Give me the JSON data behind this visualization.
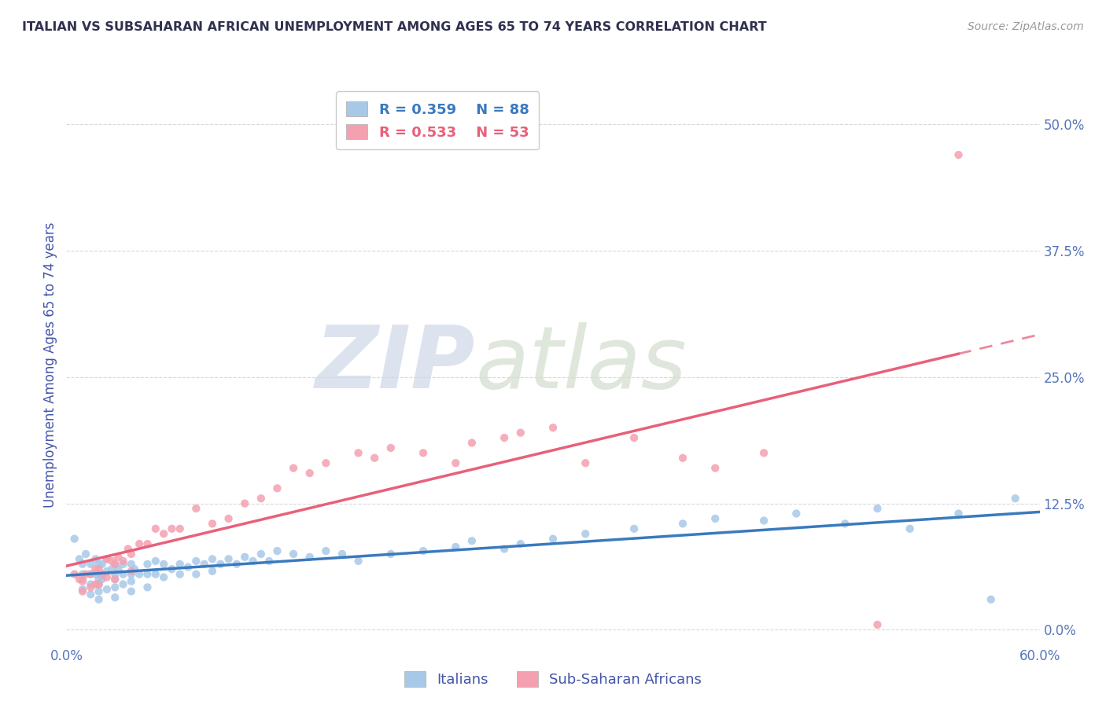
{
  "title": "ITALIAN VS SUBSAHARAN AFRICAN UNEMPLOYMENT AMONG AGES 65 TO 74 YEARS CORRELATION CHART",
  "source": "Source: ZipAtlas.com",
  "ylabel": "Unemployment Among Ages 65 to 74 years",
  "xlim": [
    0.0,
    0.6
  ],
  "ylim": [
    -0.015,
    0.54
  ],
  "yticks": [
    0.0,
    0.125,
    0.25,
    0.375,
    0.5
  ],
  "ytick_labels": [
    "0.0%",
    "12.5%",
    "25.0%",
    "37.5%",
    "50.0%"
  ],
  "xticks": [
    0.0,
    0.1,
    0.2,
    0.3,
    0.4,
    0.5,
    0.6
  ],
  "xtick_labels": [
    "0.0%",
    "",
    "",
    "",
    "",
    "",
    "60.0%"
  ],
  "legend_italian_label": "Italians",
  "legend_african_label": "Sub-Saharan Africans",
  "italian_R": "0.359",
  "italian_N": "88",
  "african_R": "0.533",
  "african_N": "53",
  "italian_color": "#a8c8e8",
  "african_color": "#f4a0b0",
  "italian_line_color": "#3a7abf",
  "african_line_color": "#e8607a",
  "watermark_zip": "ZIP",
  "watermark_atlas": "atlas",
  "background_color": "#ffffff",
  "grid_color": "#d8d8d8",
  "title_color": "#303050",
  "axis_label_color": "#4455aa",
  "tick_color": "#5577bb",
  "italian_scatter_x": [
    0.005,
    0.008,
    0.01,
    0.01,
    0.01,
    0.01,
    0.012,
    0.015,
    0.015,
    0.015,
    0.015,
    0.018,
    0.018,
    0.02,
    0.02,
    0.02,
    0.02,
    0.02,
    0.02,
    0.022,
    0.022,
    0.025,
    0.025,
    0.025,
    0.028,
    0.03,
    0.03,
    0.03,
    0.03,
    0.03,
    0.032,
    0.035,
    0.035,
    0.035,
    0.04,
    0.04,
    0.04,
    0.04,
    0.042,
    0.045,
    0.05,
    0.05,
    0.05,
    0.055,
    0.055,
    0.06,
    0.06,
    0.065,
    0.07,
    0.07,
    0.075,
    0.08,
    0.08,
    0.085,
    0.09,
    0.09,
    0.095,
    0.1,
    0.105,
    0.11,
    0.115,
    0.12,
    0.125,
    0.13,
    0.14,
    0.15,
    0.16,
    0.17,
    0.18,
    0.2,
    0.22,
    0.24,
    0.25,
    0.27,
    0.28,
    0.3,
    0.32,
    0.35,
    0.38,
    0.4,
    0.43,
    0.45,
    0.48,
    0.5,
    0.52,
    0.55,
    0.57,
    0.585
  ],
  "italian_scatter_y": [
    0.09,
    0.07,
    0.065,
    0.055,
    0.05,
    0.04,
    0.075,
    0.065,
    0.055,
    0.045,
    0.035,
    0.07,
    0.055,
    0.065,
    0.055,
    0.05,
    0.045,
    0.038,
    0.03,
    0.065,
    0.05,
    0.07,
    0.058,
    0.04,
    0.06,
    0.065,
    0.055,
    0.05,
    0.042,
    0.032,
    0.06,
    0.065,
    0.055,
    0.045,
    0.065,
    0.055,
    0.048,
    0.038,
    0.06,
    0.055,
    0.065,
    0.055,
    0.042,
    0.068,
    0.055,
    0.065,
    0.052,
    0.06,
    0.065,
    0.055,
    0.062,
    0.068,
    0.055,
    0.065,
    0.07,
    0.058,
    0.065,
    0.07,
    0.065,
    0.072,
    0.068,
    0.075,
    0.068,
    0.078,
    0.075,
    0.072,
    0.078,
    0.075,
    0.068,
    0.075,
    0.078,
    0.082,
    0.088,
    0.08,
    0.085,
    0.09,
    0.095,
    0.1,
    0.105,
    0.11,
    0.108,
    0.115,
    0.105,
    0.12,
    0.1,
    0.115,
    0.03,
    0.13
  ],
  "african_scatter_x": [
    0.005,
    0.008,
    0.01,
    0.01,
    0.012,
    0.015,
    0.015,
    0.018,
    0.018,
    0.02,
    0.02,
    0.022,
    0.025,
    0.025,
    0.028,
    0.03,
    0.03,
    0.032,
    0.035,
    0.038,
    0.04,
    0.04,
    0.045,
    0.05,
    0.055,
    0.06,
    0.065,
    0.07,
    0.08,
    0.09,
    0.1,
    0.11,
    0.12,
    0.13,
    0.14,
    0.15,
    0.16,
    0.18,
    0.19,
    0.2,
    0.22,
    0.24,
    0.25,
    0.27,
    0.28,
    0.3,
    0.32,
    0.35,
    0.38,
    0.4,
    0.43,
    0.5,
    0.55
  ],
  "african_scatter_y": [
    0.055,
    0.05,
    0.048,
    0.038,
    0.055,
    0.055,
    0.042,
    0.06,
    0.045,
    0.06,
    0.045,
    0.055,
    0.07,
    0.052,
    0.068,
    0.065,
    0.05,
    0.072,
    0.068,
    0.08,
    0.075,
    0.058,
    0.085,
    0.085,
    0.1,
    0.095,
    0.1,
    0.1,
    0.12,
    0.105,
    0.11,
    0.125,
    0.13,
    0.14,
    0.16,
    0.155,
    0.165,
    0.175,
    0.17,
    0.18,
    0.175,
    0.165,
    0.185,
    0.19,
    0.195,
    0.2,
    0.165,
    0.19,
    0.17,
    0.16,
    0.175,
    0.005,
    0.47
  ]
}
